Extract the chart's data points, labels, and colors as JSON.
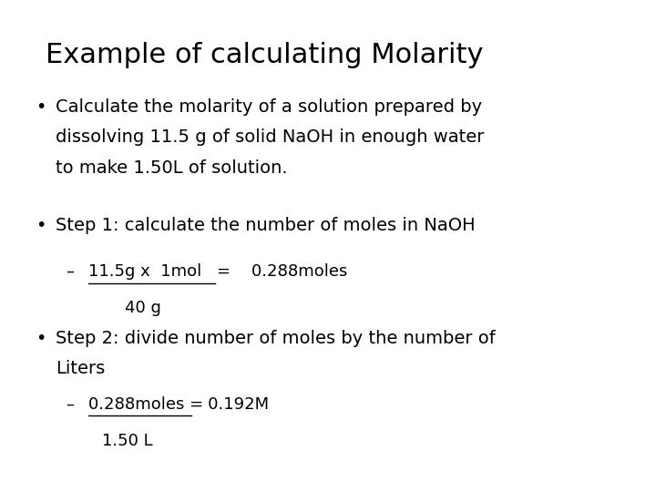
{
  "title": "Example of calculating Molarity",
  "background_color": "#ffffff",
  "text_color": "#000000",
  "title_fontsize": 22,
  "body_fontsize": 14,
  "sub_fontsize": 13,
  "bullet1_line1": "Calculate the molarity of a solution prepared by",
  "bullet1_line2": "dissolving 11.5 g of solid NaOH in enough water",
  "bullet1_line3": "to make 1.50L of solution.",
  "bullet2": "Step 1: calculate the number of moles in NaOH",
  "sub1_numerator": "11.5g x  1mol",
  "sub1_equals": "=    0.288moles",
  "sub1_denominator": "40 g",
  "bullet3_line1": "Step 2: divide number of moles by the number of",
  "bullet3_line2": "Liters",
  "sub2_numerator": "0.288moles =",
  "sub2_equals": "   0.192M",
  "sub2_denominator": "1.50 L",
  "font_family": "DejaVu Sans"
}
